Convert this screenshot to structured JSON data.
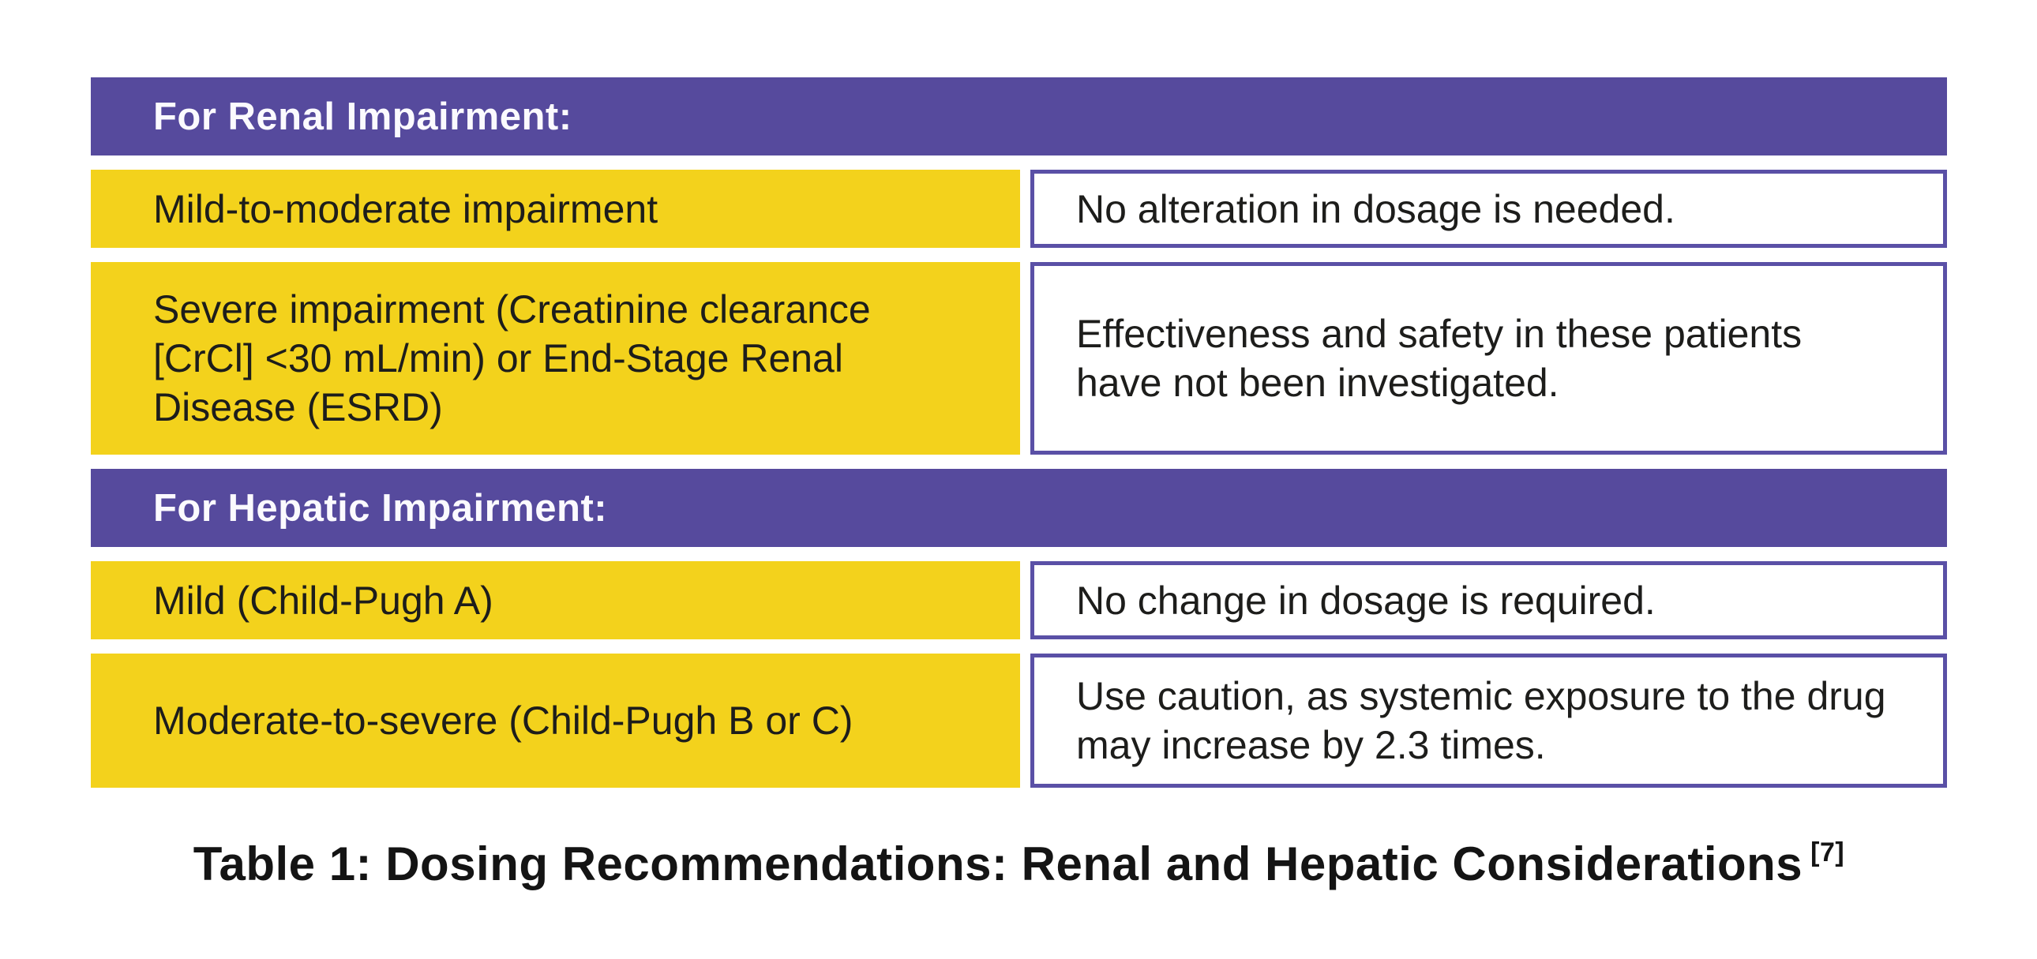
{
  "figure": {
    "caption": "Table 1: Dosing Recommendations: Renal and Hepatic Considerations",
    "caption_reference": "[7]"
  },
  "table": {
    "sections": [
      {
        "header": "For Renal Impairment:",
        "rows": [
          {
            "condition_lines": [
              "Mild-to-moderate impairment"
            ],
            "recommendation_lines": [
              "No alteration in dosage is needed."
            ]
          },
          {
            "condition_lines": [
              "Severe impairment (Creatinine clearance",
              "[CrCl] <30 mL/min) or End-Stage Renal",
              "Disease (ESRD)"
            ],
            "recommendation_lines": [
              "Effectiveness and safety in these patients",
              "have not been investigated."
            ]
          }
        ]
      },
      {
        "header": "For Hepatic Impairment:",
        "rows": [
          {
            "condition_lines": [
              "Mild (Child-Pugh A)"
            ],
            "recommendation_lines": [
              "No change in dosage is required."
            ]
          },
          {
            "condition_lines": [
              "Moderate-to-severe (Child-Pugh B or C)"
            ],
            "recommendation_lines": [
              "Use caution, as systemic exposure to the drug",
              "may increase by 2.3 times."
            ]
          }
        ]
      }
    ]
  },
  "colors": {
    "section_header_background": "#564A9D",
    "section_header_text": "#FBFAFE",
    "condition_cell_background": "#F3D21C",
    "recommendation_cell_border": "#5A50A6",
    "body_text": "#1D1D1B",
    "caption_text": "#141414"
  }
}
